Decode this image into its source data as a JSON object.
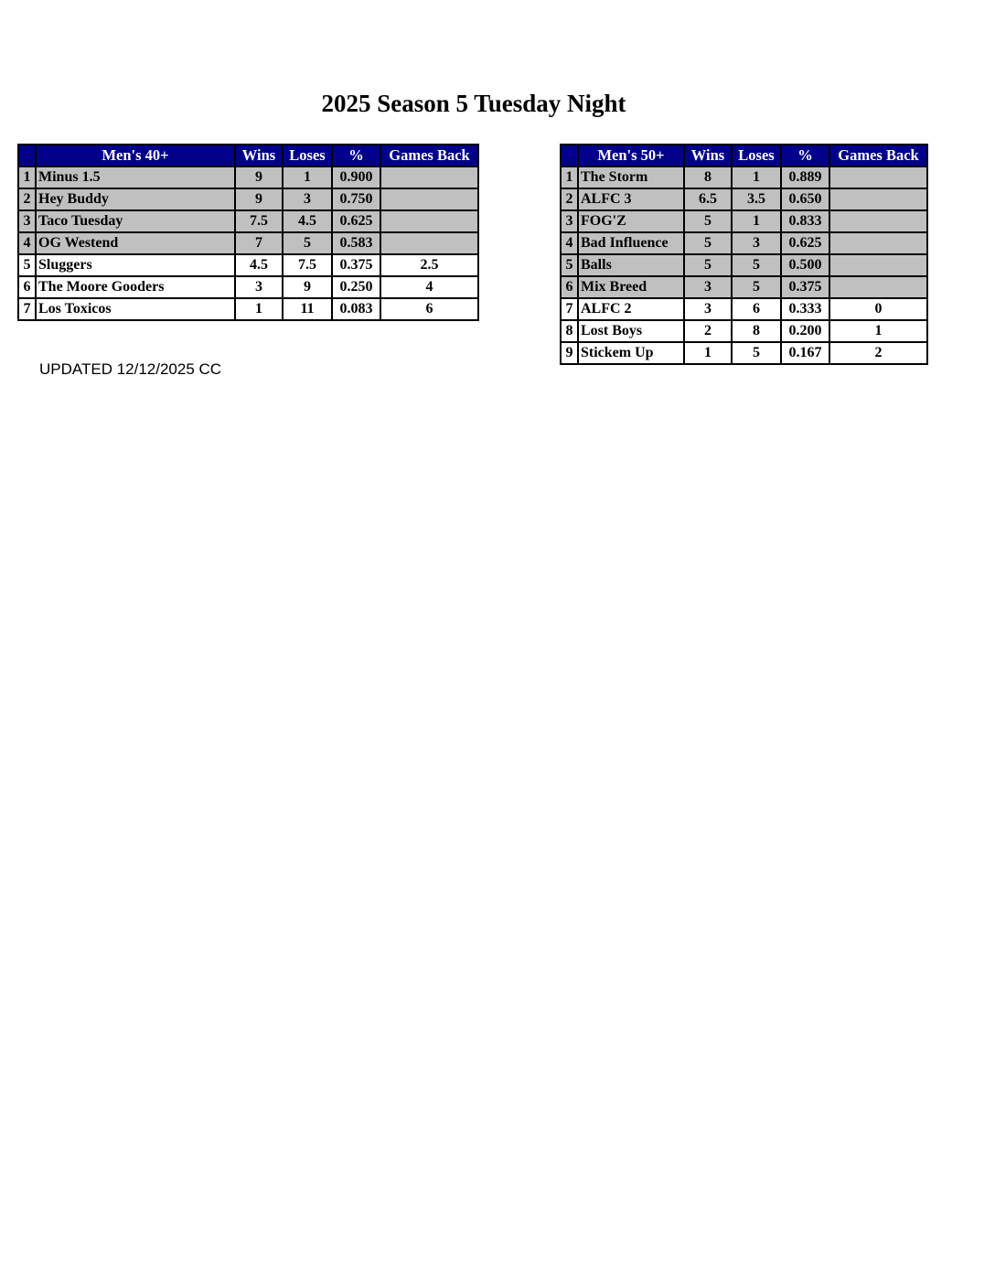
{
  "title": "2025 Season 5 Tuesday Night",
  "updated_note": "UPDATED 12/12/2025 CC",
  "colors": {
    "header_bg": "#00008b",
    "shaded_row": "#c0c0c0"
  },
  "tables": [
    {
      "headers": [
        "",
        "Men's 40+",
        "Wins",
        "Loses",
        "%",
        "Games Back"
      ],
      "rows": [
        {
          "rank": "1",
          "team": "Minus 1.5",
          "wins": "9",
          "loses": "1",
          "pct": "0.900",
          "gb": "",
          "shaded": true
        },
        {
          "rank": "2",
          "team": "Hey Buddy",
          "wins": "9",
          "loses": "3",
          "pct": "0.750",
          "gb": "",
          "shaded": true
        },
        {
          "rank": "3",
          "team": "Taco Tuesday",
          "wins": "7.5",
          "loses": "4.5",
          "pct": "0.625",
          "gb": "",
          "shaded": true
        },
        {
          "rank": "4",
          "team": "OG Westend",
          "wins": "7",
          "loses": "5",
          "pct": "0.583",
          "gb": "",
          "shaded": true
        },
        {
          "rank": "5",
          "team": "Sluggers",
          "wins": "4.5",
          "loses": "7.5",
          "pct": "0.375",
          "gb": "2.5",
          "shaded": false
        },
        {
          "rank": "6",
          "team": "The Moore Gooders",
          "wins": "3",
          "loses": "9",
          "pct": "0.250",
          "gb": "4",
          "shaded": false
        },
        {
          "rank": "7",
          "team": "Los Toxicos",
          "wins": "1",
          "loses": "11",
          "pct": "0.083",
          "gb": "6",
          "shaded": false
        }
      ]
    },
    {
      "headers": [
        "",
        "Men's 50+",
        "Wins",
        "Loses",
        "%",
        "Games Back"
      ],
      "rows": [
        {
          "rank": "1",
          "team": "The Storm",
          "wins": "8",
          "loses": "1",
          "pct": "0.889",
          "gb": "",
          "shaded": true
        },
        {
          "rank": "2",
          "team": "ALFC 3",
          "wins": "6.5",
          "loses": "3.5",
          "pct": "0.650",
          "gb": "",
          "shaded": true
        },
        {
          "rank": "3",
          "team": "FOG'Z",
          "wins": "5",
          "loses": "1",
          "pct": "0.833",
          "gb": "",
          "shaded": true
        },
        {
          "rank": "4",
          "team": "Bad Influence",
          "wins": "5",
          "loses": "3",
          "pct": "0.625",
          "gb": "",
          "shaded": true
        },
        {
          "rank": "5",
          "team": "Balls",
          "wins": "5",
          "loses": "5",
          "pct": "0.500",
          "gb": "",
          "shaded": true
        },
        {
          "rank": "6",
          "team": "Mix Breed",
          "wins": "3",
          "loses": "5",
          "pct": "0.375",
          "gb": "",
          "shaded": true
        },
        {
          "rank": "7",
          "team": "ALFC 2",
          "wins": "3",
          "loses": "6",
          "pct": "0.333",
          "gb": "0",
          "shaded": false
        },
        {
          "rank": "8",
          "team": "Lost Boys",
          "wins": "2",
          "loses": "8",
          "pct": "0.200",
          "gb": "1",
          "shaded": false
        },
        {
          "rank": "9",
          "team": "Stickem Up",
          "wins": "1",
          "loses": "5",
          "pct": "0.167",
          "gb": "2",
          "shaded": false
        }
      ]
    }
  ]
}
